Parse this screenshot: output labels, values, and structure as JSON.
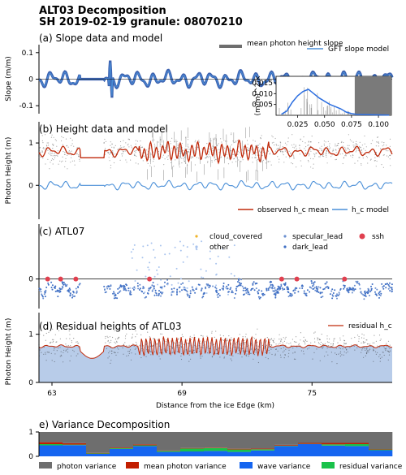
{
  "header": {
    "title_line1": "ALT03 Decomposition",
    "title_line2": "SH 2019-02-19 granule: 08070210"
  },
  "colors": {
    "slope": "#3d62b0",
    "gft": "#4a8fd8",
    "photon": "#4b4b4b",
    "mean": "#c02a0b",
    "wave": "#3d7fd9",
    "residual_fill": "#b8cce9",
    "ssh": "#e0404f",
    "cloud": "#f0b429",
    "specular": "#6a8fd0",
    "dark": "#3f6fc4",
    "other": "#a9c4ee",
    "var_photon": "#6e6e6e",
    "var_mean": "#c21e00",
    "var_wave": "#1565f0",
    "var_residual": "#19c24a",
    "grey_box": "#7a7a7a"
  },
  "chart_data": [
    {
      "id": "a",
      "type": "line",
      "title": "(a) Slope data and model",
      "ylabel": "Slope (m/m)",
      "ylim": [
        -0.13,
        0.13
      ],
      "yticks": [
        "0.1",
        "0",
        "-0.1"
      ],
      "ytick_values": [
        0.1,
        0,
        -0.1
      ],
      "xlim": [
        62.4,
        78.7
      ],
      "series": [
        {
          "name": "mean photon height slope",
          "amplitude": 0.03
        },
        {
          "name": "GFT slope model",
          "amplitude": 0.03
        }
      ],
      "legend": [
        "mean photon height slope",
        "GFT slope model"
      ],
      "legend_position": "top-right",
      "inset": {
        "type": "line",
        "ylabel": "(m/m)^2/k",
        "yticks": [
          "0.015",
          "0.010",
          "0.005"
        ],
        "ytick_values": [
          0.015,
          0.01,
          0.005
        ],
        "xticks": [
          "0.025",
          "0.050",
          "0.075",
          "0.100"
        ],
        "xtick_values": [
          0.025,
          0.05,
          0.075,
          0.1
        ],
        "xlim": [
          0.005,
          0.112
        ],
        "ylim": [
          0,
          0.018
        ],
        "shaded_from": 0.078,
        "spectrum": [
          [
            0.01,
            0.0005
          ],
          [
            0.015,
            0.002
          ],
          [
            0.02,
            0.006
          ],
          [
            0.025,
            0.009
          ],
          [
            0.03,
            0.011
          ],
          [
            0.035,
            0.012
          ],
          [
            0.04,
            0.01
          ],
          [
            0.045,
            0.008
          ],
          [
            0.05,
            0.0065
          ],
          [
            0.055,
            0.005
          ],
          [
            0.06,
            0.004
          ],
          [
            0.065,
            0.003
          ],
          [
            0.07,
            0.0015
          ],
          [
            0.075,
            0.0008
          ],
          [
            0.08,
            0.0004
          ],
          [
            0.1,
            0.0002
          ],
          [
            0.11,
            0.0001
          ]
        ]
      }
    },
    {
      "id": "b",
      "type": "line",
      "title": "(b) Height data and model",
      "ylabel": "Photon Height (m)",
      "ylim": [
        -0.8,
        1.5
      ],
      "yticks": [
        "1",
        "0"
      ],
      "ytick_values": [
        1,
        0
      ],
      "xlim": [
        62.4,
        78.7
      ],
      "series": [
        {
          "name": "observed h_c mean",
          "level": 0.8
        },
        {
          "name": "h_c model",
          "level": 0.0
        }
      ],
      "legend": [
        "observed h_c mean",
        "h_c model"
      ],
      "legend_position": "lower-right"
    },
    {
      "id": "c",
      "type": "scatter",
      "title": "(c) ATL07",
      "ylim": [
        -0.7,
        1.3
      ],
      "yticks": [
        "0"
      ],
      "ytick_values": [
        0
      ],
      "xlim": [
        62.4,
        78.7
      ],
      "legend": [
        "cloud_covered",
        "other",
        "specular_lead",
        "dark_lead",
        "ssh"
      ],
      "legend_position": "top-right",
      "ssh_x": [
        62.8,
        63.4,
        64.1,
        67.5,
        73.6,
        74.3,
        76.5
      ],
      "ssh_y": 0
    },
    {
      "id": "d",
      "type": "area",
      "title": "(d) Residual heights of ATL03",
      "ylabel": "Photon Height (m)",
      "xlabel": "Distance from the ice Edge (km)",
      "ylim": [
        0,
        1.45
      ],
      "yticks": [
        "1",
        "0"
      ],
      "ytick_values": [
        1,
        0
      ],
      "xlim": [
        62.4,
        78.7
      ],
      "xticks": [
        "63",
        "69",
        "75"
      ],
      "xtick_values": [
        63,
        69,
        75
      ],
      "series": [
        {
          "name": "residual h_c",
          "level": 0.75
        }
      ],
      "legend": [
        "residual h_c"
      ],
      "legend_position": "top-right"
    },
    {
      "id": "e",
      "type": "bar",
      "title": "e) Variance Decomposition",
      "ylim": [
        0,
        1
      ],
      "yticks": [
        "1",
        "0"
      ],
      "ytick_values": [
        1,
        0
      ],
      "series": [
        {
          "name": "wave variance",
          "values": [
            0.45,
            0.46,
            0.1,
            0.3,
            0.42,
            0.18,
            0.2,
            0.22,
            0.18,
            0.24,
            0.42,
            0.5,
            0.44,
            0.42,
            0.25
          ]
        },
        {
          "name": "residual variance",
          "values": [
            0.05,
            0.02,
            0.02,
            0.03,
            0.03,
            0.04,
            0.12,
            0.12,
            0.1,
            0.05,
            0.02,
            0.01,
            0.05,
            0.08,
            0.03
          ]
        },
        {
          "name": "mean photon variance",
          "values": [
            0.08,
            0.06,
            0.02,
            0.03,
            0.04,
            0.02,
            0.02,
            0.02,
            0.03,
            0.03,
            0.03,
            0.04,
            0.06,
            0.05,
            0.02
          ]
        },
        {
          "name": "photon variance",
          "values": [
            0.42,
            0.46,
            0.86,
            0.64,
            0.51,
            0.76,
            0.66,
            0.64,
            0.69,
            0.68,
            0.53,
            0.45,
            0.45,
            0.45,
            0.7
          ]
        }
      ],
      "legend": [
        "photon variance",
        "mean photon variance",
        "wave variance",
        "residual variance"
      ],
      "legend_position": "bottom"
    }
  ]
}
